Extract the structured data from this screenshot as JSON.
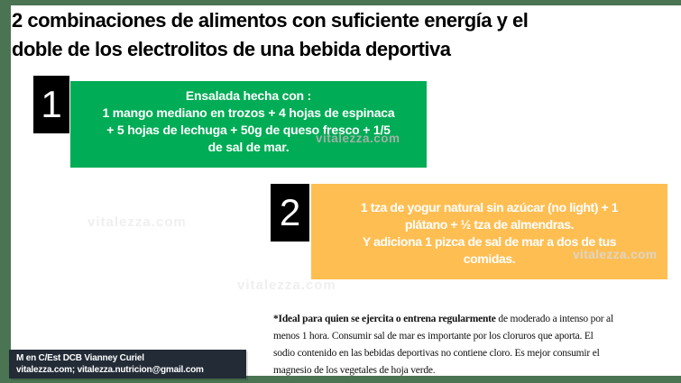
{
  "title": {
    "line1": "2 combinaciones de alimentos con suficiente energía y el",
    "line2": "doble de los electrolitos de una bebida deportiva"
  },
  "combos": [
    {
      "number": "1",
      "heading": "Ensalada hecha con :",
      "lines": [
        "1 mango mediano en trozos + 4 hojas de espinaca",
        "+ 5 hojas de lechuga + 50g de queso fresco + 1/5",
        "de sal de mar."
      ],
      "watermark": "vitalezza.com",
      "box_color": "#00AC55"
    },
    {
      "number": "2",
      "lines": [
        "1 tza de yogur natural sin azúcar (no light) + 1",
        "plátano + ½ tza de almendras.",
        "Y adiciona 1 pizca de sal de mar a dos de tus",
        "comidas."
      ],
      "watermark": "vitalezza.com",
      "box_color": "#FFBE52"
    }
  ],
  "footnote": {
    "line1_bold": "*Ideal para quien se ejercita o entrena regularmente",
    "line1_rest": " de moderado a intenso por al",
    "line2": "menos 1 hora. Consumir sal de mar es importante por los cloruros que aporta. El",
    "line3": "sodio contenido en las bebidas deportivas no contiene cloro. Es mejor consumir el",
    "line4": "magnesio de los vegetales de hoja verde."
  },
  "credit": {
    "line1": "M en C/Est DCB Vianney Curiel",
    "line2": "vitalezza.com; vitalezza.nutricion@gmail.com"
  },
  "background_watermarks": [
    "vitalezza.com",
    "vitalezza.com"
  ],
  "colors": {
    "frame_bar": "#4A7452",
    "combo1_box": "#00AC55",
    "combo2_box": "#FFBE52",
    "number_badge": "#000000",
    "credit_bg": "#222B36",
    "card_text": "#FFFFFF",
    "title_text": "#000000"
  }
}
